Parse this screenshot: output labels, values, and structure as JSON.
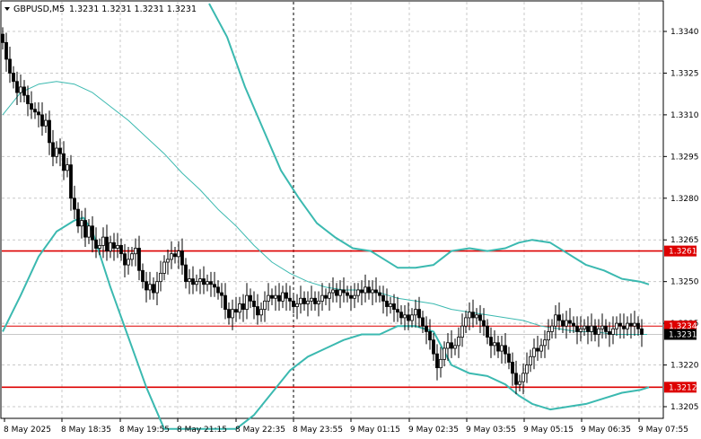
{
  "window": {
    "symbol_label": "GBPUSD,M5",
    "ohlc": "1.3231 1.3231 1.3231 1.3231"
  },
  "chart_data": {
    "type": "candlestick",
    "symbol": "GBPUSD",
    "timeframe": "M5",
    "colors": {
      "background": "#ffffff",
      "candle": "#000000",
      "bollinger_bands": "#3bb9b0",
      "moving_average": "#3bb9b0",
      "level_line": "#dd0000",
      "bid_line": "#c8c8c8",
      "price_tag_red": "#dd0000",
      "price_tag_current": "#000000"
    },
    "yaxis": {
      "range": [
        1.3197,
        1.335
      ],
      "ticks": [
        "1.3340",
        "1.3325",
        "1.3310",
        "1.3295",
        "1.3280",
        "1.3265",
        "1.3250",
        "1.3235",
        "1.3220",
        "1.3205"
      ]
    },
    "xaxis": {
      "ticks": [
        "8 May 2025",
        "8 May 18:35",
        "8 May 19:55",
        "8 May 21:15",
        "8 May 22:35",
        "8 May 23:55",
        "9 May 01:15",
        "9 May 02:35",
        "9 May 03:55",
        "9 May 05:15",
        "9 May 06:35",
        "9 May 07:55"
      ],
      "period_separator": "8 May 23:55"
    },
    "horizontal_levels": [
      {
        "label": "1.3261",
        "value": 1.3261,
        "color": "#dd0000"
      },
      {
        "label": "1.3234",
        "value": 1.3234,
        "color": "#dd0000",
        "style": "thin"
      },
      {
        "label": "1.3212",
        "value": 1.3212,
        "color": "#dd0000"
      }
    ],
    "current_price": {
      "label": "1.3231",
      "value": 1.3231
    },
    "close_path": [
      [
        0,
        1.3336
      ],
      [
        4,
        1.333
      ],
      [
        8,
        1.3325
      ],
      [
        12,
        1.3322
      ],
      [
        16,
        1.3318
      ],
      [
        20,
        1.332
      ],
      [
        24,
        1.3317
      ],
      [
        28,
        1.3314
      ],
      [
        32,
        1.3312
      ],
      [
        36,
        1.3311
      ],
      [
        40,
        1.331
      ],
      [
        44,
        1.3306
      ],
      [
        48,
        1.3308
      ],
      [
        52,
        1.33
      ],
      [
        56,
        1.3295
      ],
      [
        60,
        1.3298
      ],
      [
        64,
        1.3296
      ],
      [
        68,
        1.329
      ],
      [
        72,
        1.3292
      ],
      [
        76,
        1.328
      ],
      [
        80,
        1.3276
      ],
      [
        84,
        1.327
      ],
      [
        88,
        1.3272
      ],
      [
        92,
        1.3266
      ],
      [
        96,
        1.327
      ],
      [
        100,
        1.3265
      ],
      [
        104,
        1.3262
      ],
      [
        108,
        1.3263
      ],
      [
        112,
        1.3266
      ],
      [
        116,
        1.3261
      ],
      [
        120,
        1.3264
      ],
      [
        124,
        1.3262
      ],
      [
        128,
        1.3263
      ],
      [
        132,
        1.326
      ],
      [
        136,
        1.3256
      ],
      [
        140,
        1.3258
      ],
      [
        144,
        1.326
      ],
      [
        148,
        1.3262
      ],
      [
        152,
        1.3254
      ],
      [
        156,
        1.325
      ],
      [
        160,
        1.3247
      ],
      [
        164,
        1.3249
      ],
      [
        168,
        1.3246
      ],
      [
        172,
        1.325
      ],
      [
        176,
        1.3253
      ],
      [
        180,
        1.3257
      ],
      [
        184,
        1.3258
      ],
      [
        188,
        1.326
      ],
      [
        192,
        1.3259
      ],
      [
        196,
        1.3261
      ],
      [
        200,
        1.3256
      ],
      [
        204,
        1.325
      ],
      [
        208,
        1.3251
      ],
      [
        212,
        1.3249
      ],
      [
        216,
        1.325
      ],
      [
        220,
        1.3251
      ],
      [
        224,
        1.3249
      ],
      [
        228,
        1.325
      ],
      [
        232,
        1.3249
      ],
      [
        236,
        1.3248
      ],
      [
        240,
        1.3246
      ],
      [
        244,
        1.3245
      ],
      [
        248,
        1.324
      ],
      [
        252,
        1.3237
      ],
      [
        256,
        1.324
      ],
      [
        260,
        1.3239
      ],
      [
        264,
        1.3242
      ],
      [
        268,
        1.324
      ],
      [
        272,
        1.3245
      ],
      [
        276,
        1.3243
      ],
      [
        280,
        1.3241
      ],
      [
        284,
        1.3238
      ],
      [
        288,
        1.324
      ],
      [
        292,
        1.3243
      ],
      [
        296,
        1.3245
      ],
      [
        300,
        1.3244
      ],
      [
        304,
        1.3245
      ],
      [
        308,
        1.3243
      ],
      [
        312,
        1.3246
      ],
      [
        316,
        1.3244
      ],
      [
        320,
        1.3243
      ],
      [
        324,
        1.3241
      ],
      [
        328,
        1.3242
      ],
      [
        332,
        1.3244
      ],
      [
        336,
        1.3242
      ],
      [
        340,
        1.3243
      ],
      [
        344,
        1.3244
      ],
      [
        348,
        1.3242
      ],
      [
        352,
        1.3243
      ],
      [
        356,
        1.3245
      ],
      [
        360,
        1.3244
      ],
      [
        364,
        1.3246
      ],
      [
        368,
        1.3247
      ],
      [
        372,
        1.3245
      ],
      [
        376,
        1.3247
      ],
      [
        380,
        1.3246
      ],
      [
        384,
        1.3245
      ],
      [
        388,
        1.3244
      ],
      [
        392,
        1.3245
      ],
      [
        396,
        1.3247
      ],
      [
        400,
        1.3246
      ],
      [
        404,
        1.3248
      ],
      [
        408,
        1.3246
      ],
      [
        412,
        1.3247
      ],
      [
        416,
        1.3246
      ],
      [
        420,
        1.3245
      ],
      [
        424,
        1.3243
      ],
      [
        428,
        1.3241
      ],
      [
        432,
        1.3242
      ],
      [
        436,
        1.324
      ],
      [
        440,
        1.3239
      ],
      [
        444,
        1.3237
      ],
      [
        448,
        1.3238
      ],
      [
        452,
        1.3236
      ],
      [
        456,
        1.3238
      ],
      [
        460,
        1.324
      ],
      [
        464,
        1.3237
      ],
      [
        468,
        1.3234
      ],
      [
        472,
        1.3232
      ],
      [
        476,
        1.3229
      ],
      [
        480,
        1.3224
      ],
      [
        484,
        1.3219
      ],
      [
        488,
        1.3222
      ],
      [
        492,
        1.3226
      ],
      [
        496,
        1.3228
      ],
      [
        500,
        1.3226
      ],
      [
        504,
        1.3227
      ],
      [
        508,
        1.323
      ],
      [
        512,
        1.3234
      ],
      [
        516,
        1.3237
      ],
      [
        520,
        1.3239
      ],
      [
        524,
        1.3237
      ],
      [
        528,
        1.3238
      ],
      [
        532,
        1.3236
      ],
      [
        536,
        1.3234
      ],
      [
        540,
        1.323
      ],
      [
        544,
        1.3227
      ],
      [
        548,
        1.3228
      ],
      [
        552,
        1.3225
      ],
      [
        556,
        1.3227
      ],
      [
        560,
        1.3224
      ],
      [
        564,
        1.3221
      ],
      [
        568,
        1.3217
      ],
      [
        572,
        1.3213
      ],
      [
        576,
        1.3214
      ],
      [
        580,
        1.3217
      ],
      [
        584,
        1.322
      ],
      [
        588,
        1.3223
      ],
      [
        592,
        1.3226
      ],
      [
        596,
        1.3225
      ],
      [
        600,
        1.3227
      ],
      [
        604,
        1.3229
      ],
      [
        608,
        1.3232
      ],
      [
        612,
        1.3234
      ],
      [
        616,
        1.3238
      ],
      [
        620,
        1.3236
      ],
      [
        624,
        1.3234
      ],
      [
        628,
        1.3236
      ],
      [
        632,
        1.3235
      ],
      [
        636,
        1.3234
      ],
      [
        640,
        1.3232
      ],
      [
        644,
        1.3233
      ],
      [
        648,
        1.3234
      ],
      [
        652,
        1.3232
      ],
      [
        656,
        1.3234
      ],
      [
        660,
        1.3231
      ],
      [
        664,
        1.3233
      ],
      [
        668,
        1.3234
      ],
      [
        672,
        1.3232
      ],
      [
        676,
        1.3231
      ],
      [
        680,
        1.3233
      ],
      [
        684,
        1.3235
      ],
      [
        688,
        1.3234
      ],
      [
        692,
        1.3233
      ],
      [
        696,
        1.3235
      ],
      [
        700,
        1.3234
      ],
      [
        704,
        1.3235
      ],
      [
        708,
        1.3233
      ],
      [
        712,
        1.3231
      ]
    ],
    "bollinger_upper": [
      [
        230,
        1.335
      ],
      [
        250,
        1.3338
      ],
      [
        270,
        1.332
      ],
      [
        290,
        1.3305
      ],
      [
        310,
        1.329
      ],
      [
        330,
        1.328
      ],
      [
        350,
        1.3271
      ],
      [
        370,
        1.3266
      ],
      [
        390,
        1.3262
      ],
      [
        410,
        1.3261
      ],
      [
        420,
        1.3259
      ],
      [
        440,
        1.3255
      ],
      [
        460,
        1.3255
      ],
      [
        480,
        1.3256
      ],
      [
        500,
        1.3261
      ],
      [
        520,
        1.3262
      ],
      [
        540,
        1.3261
      ],
      [
        560,
        1.3262
      ],
      [
        575,
        1.3264
      ],
      [
        590,
        1.3265
      ],
      [
        610,
        1.3264
      ],
      [
        630,
        1.326
      ],
      [
        650,
        1.3256
      ],
      [
        670,
        1.3254
      ],
      [
        690,
        1.3251
      ],
      [
        710,
        1.325
      ],
      [
        720,
        1.3249
      ]
    ],
    "bollinger_lower": [
      [
        0,
        1.3232
      ],
      [
        20,
        1.3245
      ],
      [
        40,
        1.3259
      ],
      [
        60,
        1.3268
      ],
      [
        80,
        1.3272
      ],
      [
        90,
        1.3273
      ],
      [
        100,
        1.3268
      ],
      [
        120,
        1.3248
      ],
      [
        140,
        1.323
      ],
      [
        160,
        1.3212
      ],
      [
        180,
        1.3197
      ],
      [
        260,
        1.3197
      ],
      [
        280,
        1.3202
      ],
      [
        300,
        1.321
      ],
      [
        320,
        1.3218
      ],
      [
        340,
        1.3223
      ],
      [
        360,
        1.3226
      ],
      [
        380,
        1.3229
      ],
      [
        400,
        1.3231
      ],
      [
        420,
        1.3231
      ],
      [
        440,
        1.3234
      ],
      [
        460,
        1.3234
      ],
      [
        480,
        1.3232
      ],
      [
        500,
        1.322
      ],
      [
        520,
        1.3217
      ],
      [
        540,
        1.3216
      ],
      [
        560,
        1.3213
      ],
      [
        575,
        1.3209
      ],
      [
        590,
        1.3206
      ],
      [
        610,
        1.3204
      ],
      [
        630,
        1.3205
      ],
      [
        650,
        1.3206
      ],
      [
        670,
        1.3208
      ],
      [
        690,
        1.321
      ],
      [
        710,
        1.3211
      ],
      [
        720,
        1.3212
      ]
    ],
    "moving_average": [
      [
        0,
        1.331
      ],
      [
        20,
        1.3318
      ],
      [
        40,
        1.3321
      ],
      [
        60,
        1.3322
      ],
      [
        80,
        1.3321
      ],
      [
        100,
        1.3318
      ],
      [
        120,
        1.3313
      ],
      [
        140,
        1.3308
      ],
      [
        160,
        1.3302
      ],
      [
        180,
        1.3296
      ],
      [
        200,
        1.3289
      ],
      [
        220,
        1.3283
      ],
      [
        240,
        1.3276
      ],
      [
        260,
        1.327
      ],
      [
        280,
        1.3263
      ],
      [
        300,
        1.3257
      ],
      [
        320,
        1.3253
      ],
      [
        340,
        1.325
      ],
      [
        360,
        1.3248
      ],
      [
        380,
        1.3247
      ],
      [
        400,
        1.3247
      ],
      [
        420,
        1.3246
      ],
      [
        440,
        1.3244
      ],
      [
        460,
        1.3243
      ],
      [
        480,
        1.3242
      ],
      [
        500,
        1.324
      ],
      [
        520,
        1.3239
      ],
      [
        540,
        1.3238
      ],
      [
        560,
        1.3237
      ],
      [
        580,
        1.3236
      ],
      [
        600,
        1.3234
      ],
      [
        620,
        1.3233
      ],
      [
        640,
        1.3232
      ],
      [
        660,
        1.3232
      ],
      [
        680,
        1.3231
      ],
      [
        700,
        1.3231
      ],
      [
        718,
        1.3231
      ]
    ]
  }
}
